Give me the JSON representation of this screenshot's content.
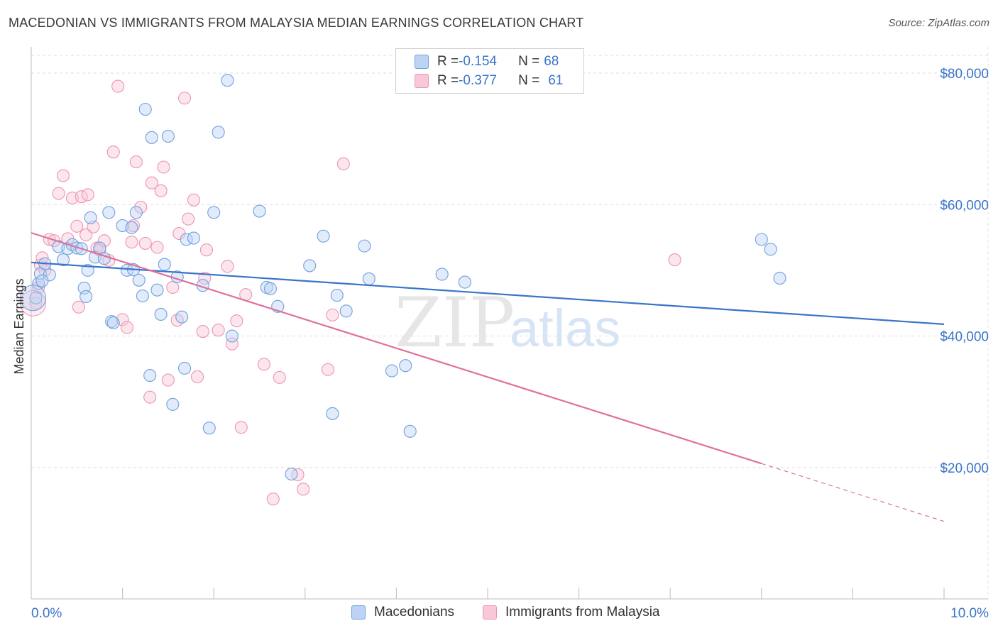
{
  "header": {
    "title": "MACEDONIAN VS IMMIGRANTS FROM MALAYSIA MEDIAN EARNINGS CORRELATION CHART",
    "source": "Source: ZipAtlas.com"
  },
  "legend": {
    "rows": [
      {
        "r_label": "R = ",
        "r_value": "-0.154",
        "n_label": "N = ",
        "n_value": "68",
        "color": "#6fa0e0"
      },
      {
        "r_label": "R = ",
        "r_value": "-0.377",
        "n_label": "N = ",
        "n_value": "61",
        "color": "#ef93b1"
      }
    ]
  },
  "bottom_legend": {
    "items": [
      {
        "label": "Macedonians",
        "color": "#6fa0e0"
      },
      {
        "label": "Immigrants from Malaysia",
        "color": "#ef93b1"
      }
    ]
  },
  "watermark": {
    "zip": "ZIP",
    "atlas": "atlas"
  },
  "chart_data": {
    "type": "scatter",
    "title": "MACEDONIAN VS IMMIGRANTS FROM MALAYSIA MEDIAN EARNINGS CORRELATION CHART",
    "xlabel": "",
    "ylabel": "Median Earnings",
    "xlim": [
      0.0,
      10.0
    ],
    "ylim": [
      0,
      84000
    ],
    "x_tick_labels": [
      "0.0%",
      "10.0%"
    ],
    "y_ticks": [
      20000,
      40000,
      60000,
      80000
    ],
    "y_tick_labels": [
      "$20,000",
      "$40,000",
      "$60,000",
      "$80,000"
    ],
    "grid": true,
    "legend_position": "top-center",
    "series": [
      {
        "name": "Macedonians",
        "color": "#6fa0e0",
        "trend": {
          "x": [
            0.0,
            10.0
          ],
          "y": [
            51200,
            41800
          ]
        },
        "points": [
          [
            0.05,
            45800
          ],
          [
            0.08,
            48000
          ],
          [
            0.1,
            49500
          ],
          [
            0.15,
            51000
          ],
          [
            0.2,
            49300
          ],
          [
            0.3,
            53600
          ],
          [
            0.35,
            51600
          ],
          [
            0.4,
            53300
          ],
          [
            0.45,
            53900
          ],
          [
            0.5,
            53400
          ],
          [
            0.55,
            53300
          ],
          [
            0.58,
            47300
          ],
          [
            0.6,
            46000
          ],
          [
            0.62,
            50000
          ],
          [
            0.65,
            58000
          ],
          [
            0.7,
            52000
          ],
          [
            0.75,
            53400
          ],
          [
            0.8,
            51800
          ],
          [
            0.85,
            58800
          ],
          [
            0.88,
            42200
          ],
          [
            0.9,
            42000
          ],
          [
            1.0,
            56800
          ],
          [
            1.05,
            50000
          ],
          [
            1.1,
            56500
          ],
          [
            1.12,
            50100
          ],
          [
            1.15,
            58800
          ],
          [
            1.18,
            48500
          ],
          [
            1.22,
            46100
          ],
          [
            1.25,
            74500
          ],
          [
            1.3,
            34000
          ],
          [
            1.32,
            70200
          ],
          [
            1.38,
            47000
          ],
          [
            1.42,
            43300
          ],
          [
            1.46,
            50900
          ],
          [
            1.5,
            70400
          ],
          [
            1.55,
            29600
          ],
          [
            1.6,
            49000
          ],
          [
            1.65,
            42900
          ],
          [
            1.68,
            35100
          ],
          [
            1.7,
            54700
          ],
          [
            1.78,
            54900
          ],
          [
            1.88,
            47700
          ],
          [
            1.95,
            26000
          ],
          [
            2.0,
            58800
          ],
          [
            2.05,
            71000
          ],
          [
            2.15,
            78900
          ],
          [
            2.2,
            40000
          ],
          [
            2.5,
            59000
          ],
          [
            2.58,
            47400
          ],
          [
            2.62,
            47200
          ],
          [
            2.7,
            44500
          ],
          [
            2.85,
            19000
          ],
          [
            3.05,
            50700
          ],
          [
            3.2,
            55200
          ],
          [
            3.3,
            28200
          ],
          [
            3.35,
            46200
          ],
          [
            3.45,
            43800
          ],
          [
            3.65,
            53700
          ],
          [
            3.7,
            48700
          ],
          [
            3.95,
            34700
          ],
          [
            4.1,
            35500
          ],
          [
            4.15,
            25500
          ],
          [
            4.5,
            49400
          ],
          [
            4.75,
            48200
          ],
          [
            8.0,
            54700
          ],
          [
            8.1,
            53200
          ],
          [
            8.2,
            48800
          ],
          [
            0.12,
            48400
          ]
        ]
      },
      {
        "name": "Immigrants from Malaysia",
        "color": "#ef93b1",
        "trend": {
          "x": [
            0.0,
            8.0
          ],
          "y": [
            55700,
            20600
          ]
        },
        "trend_dashed": {
          "x": [
            8.0,
            10.0
          ],
          "y": [
            20600,
            11800
          ]
        },
        "points": [
          [
            0.05,
            45000
          ],
          [
            0.1,
            50800
          ],
          [
            0.12,
            51900
          ],
          [
            0.15,
            50000
          ],
          [
            0.2,
            54700
          ],
          [
            0.25,
            54500
          ],
          [
            0.3,
            61700
          ],
          [
            0.35,
            64400
          ],
          [
            0.4,
            54800
          ],
          [
            0.45,
            61000
          ],
          [
            0.5,
            56700
          ],
          [
            0.52,
            44400
          ],
          [
            0.55,
            61200
          ],
          [
            0.6,
            55400
          ],
          [
            0.62,
            61500
          ],
          [
            0.68,
            56600
          ],
          [
            0.72,
            53400
          ],
          [
            0.75,
            53100
          ],
          [
            0.8,
            54500
          ],
          [
            0.85,
            51500
          ],
          [
            0.9,
            68000
          ],
          [
            0.95,
            78000
          ],
          [
            1.0,
            42500
          ],
          [
            1.05,
            41300
          ],
          [
            1.1,
            54300
          ],
          [
            1.12,
            56800
          ],
          [
            1.15,
            66500
          ],
          [
            1.2,
            59600
          ],
          [
            1.25,
            54100
          ],
          [
            1.3,
            30700
          ],
          [
            1.32,
            63300
          ],
          [
            1.38,
            53500
          ],
          [
            1.42,
            62100
          ],
          [
            1.45,
            65700
          ],
          [
            1.5,
            33300
          ],
          [
            1.55,
            47400
          ],
          [
            1.6,
            42400
          ],
          [
            1.62,
            55600
          ],
          [
            1.68,
            76200
          ],
          [
            1.72,
            57800
          ],
          [
            1.78,
            60700
          ],
          [
            1.82,
            33800
          ],
          [
            1.88,
            40700
          ],
          [
            1.9,
            48800
          ],
          [
            1.92,
            53100
          ],
          [
            2.05,
            40900
          ],
          [
            2.15,
            50600
          ],
          [
            2.2,
            38800
          ],
          [
            2.25,
            42300
          ],
          [
            2.3,
            26100
          ],
          [
            2.35,
            46300
          ],
          [
            2.55,
            35700
          ],
          [
            2.65,
            15200
          ],
          [
            2.72,
            33700
          ],
          [
            2.92,
            18900
          ],
          [
            2.98,
            16700
          ],
          [
            3.25,
            34900
          ],
          [
            3.3,
            43200
          ],
          [
            3.42,
            66200
          ],
          [
            7.05,
            51600
          ],
          [
            0.08,
            47400
          ]
        ]
      }
    ]
  }
}
